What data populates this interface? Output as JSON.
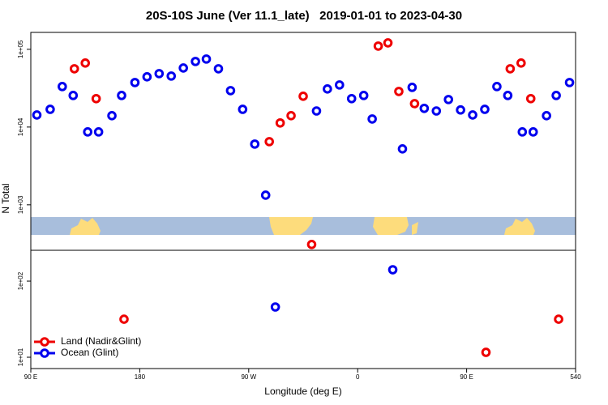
{
  "chart_data": [
    {
      "type": "scatter",
      "title": "20S-10S June (Ver 11.1_late)   2019-01-01 to 2023-04-30",
      "y_label": "N Total",
      "log_y": true,
      "xlim": [
        90,
        540
      ],
      "ylim": [
        260,
        165000
      ],
      "yticks": [
        {
          "value": 1000,
          "label": "1e+03"
        },
        {
          "value": 10000,
          "label": "1e+04"
        },
        {
          "value": 100000,
          "label": "1e+05"
        }
      ],
      "series": [
        {
          "color": "#ee0000",
          "x": [
            126,
            135,
            144,
            287,
            296,
            305,
            315,
            322,
            377,
            385,
            394,
            407,
            486,
            495,
            503
          ],
          "values": [
            56200,
            66600,
            23200,
            6490,
            11300,
            14000,
            24900,
            309,
            110000,
            121000,
            28700,
            20000,
            56200,
            66600,
            23200
          ]
        },
        {
          "color": "#0000ee",
          "x": [
            95,
            106,
            116,
            125,
            137,
            146,
            157,
            165,
            176,
            186,
            196,
            206,
            216,
            226,
            235,
            245,
            255,
            265,
            275,
            284,
            326,
            335,
            345,
            355,
            365,
            372,
            397,
            405,
            415,
            425,
            435,
            445,
            455,
            465,
            475,
            484,
            496,
            505,
            516,
            524,
            535
          ],
          "values": [
            14300,
            16900,
            33200,
            25500,
            8660,
            8660,
            14000,
            25500,
            37400,
            44300,
            48700,
            45300,
            57500,
            69800,
            75000,
            56200,
            29400,
            16900,
            6040,
            1330,
            16100,
            30900,
            34800,
            23200,
            25500,
            12700,
            5240,
            32400,
            17400,
            16100,
            22600,
            16600,
            14300,
            16900,
            33200,
            25500,
            8660,
            8660,
            14000,
            25500,
            37400
          ]
        }
      ]
    },
    {
      "type": "scatter",
      "x_label": "Longitude (deg E)",
      "log_y": true,
      "xlim": [
        90,
        540
      ],
      "ylim": [
        7.1,
        254
      ],
      "xticks": [
        {
          "value": 90,
          "label": "90 E"
        },
        180,
        {
          "value": 270,
          "label": "90 W"
        },
        {
          "value": 360,
          "label": "0"
        },
        {
          "value": 450,
          "label": "90 E"
        },
        540
      ],
      "yticks": [
        {
          "value": 10,
          "label": "1e+01"
        },
        {
          "value": 100,
          "label": "1e+02"
        }
      ],
      "legend": "bottom left",
      "series": [
        {
          "name": "Land (Nadir&Glint)",
          "color": "#ee0000",
          "x": [
            167,
            466,
            526
          ],
          "values": [
            31.6,
            11.6,
            31.6
          ]
        },
        {
          "name": "Ocean (Glint)",
          "color": "#0000ee",
          "x": [
            292,
            389
          ],
          "values": [
            45.7,
            141
          ]
        }
      ]
    }
  ]
}
